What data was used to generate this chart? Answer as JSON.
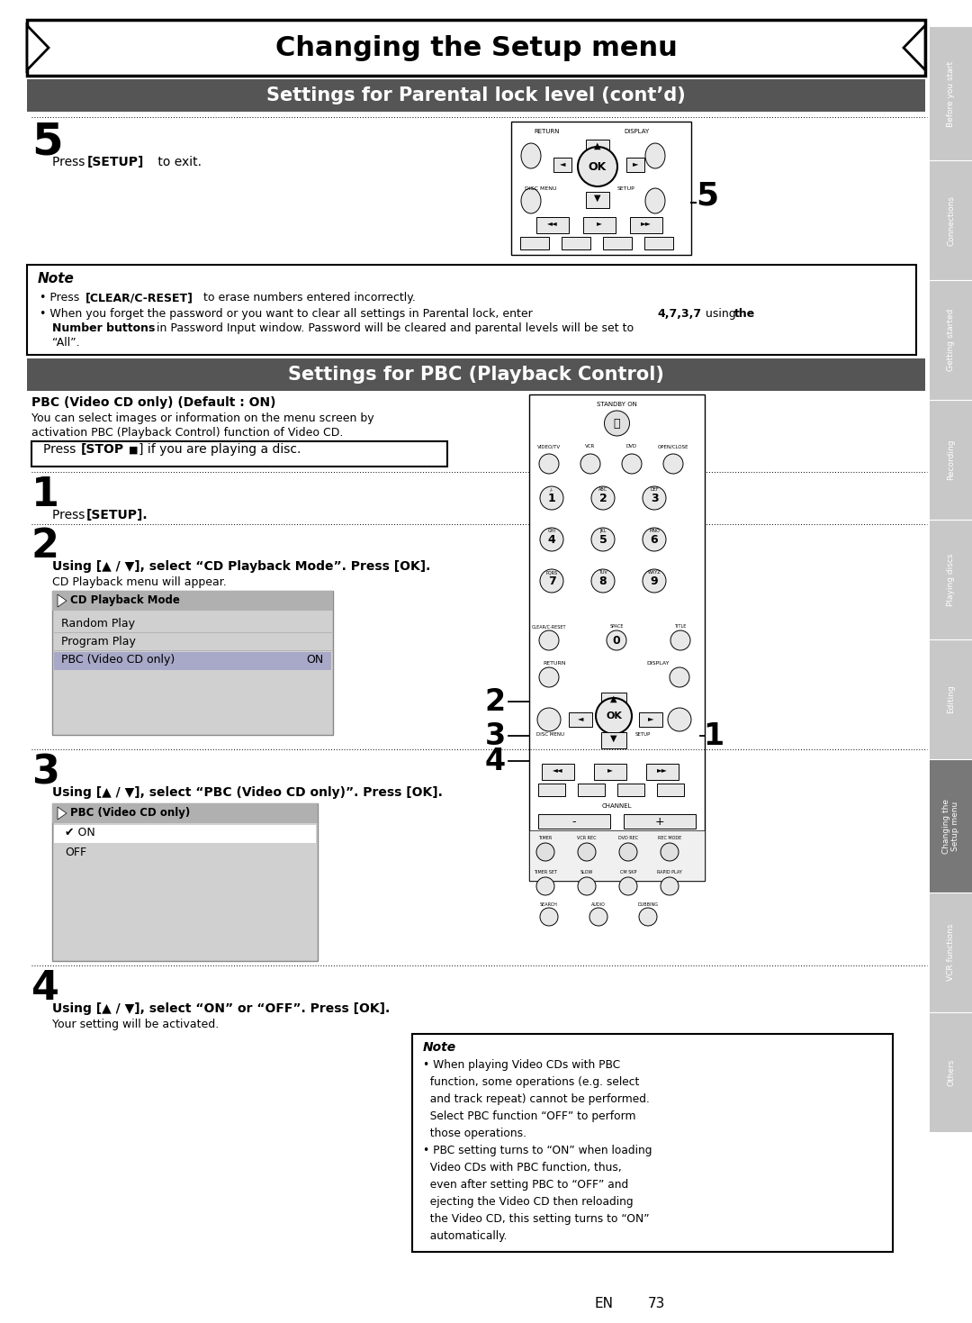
{
  "page_bg": "#ffffff",
  "main_title": "Changing the Setup menu",
  "section1_title": "Settings for Parental lock level (cont’d)",
  "section2_title": "Settings for PBC (Playback Control)",
  "tab_labels": [
    "Before you start",
    "Connections",
    "Getting started",
    "Recording",
    "Playing discs",
    "Editing",
    "Changing the\nSetup menu",
    "VCR functions",
    "Others"
  ],
  "tab_colors": [
    "#c8c8c8",
    "#c8c8c8",
    "#c8c8c8",
    "#c8c8c8",
    "#c8c8c8",
    "#c8c8c8",
    "#787878",
    "#c8c8c8",
    "#c8c8c8"
  ]
}
